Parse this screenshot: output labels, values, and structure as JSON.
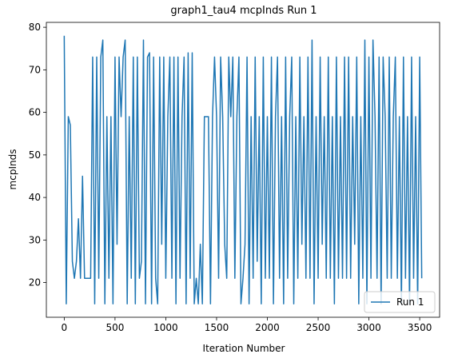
{
  "chart_data": {
    "type": "line",
    "title": "graph1_tau4 mcpInds Run 1",
    "xlabel": "Iteration Number",
    "ylabel": "mcpInds",
    "x": [
      0,
      20,
      40,
      60,
      80,
      100,
      120,
      140,
      160,
      180,
      200,
      220,
      240,
      260,
      280,
      300,
      320,
      340,
      360,
      380,
      400,
      420,
      440,
      460,
      480,
      500,
      520,
      540,
      560,
      580,
      600,
      620,
      640,
      660,
      680,
      700,
      720,
      740,
      760,
      780,
      800,
      820,
      840,
      860,
      880,
      900,
      920,
      940,
      960,
      980,
      1000,
      1020,
      1040,
      1060,
      1080,
      1100,
      1120,
      1140,
      1160,
      1180,
      1200,
      1220,
      1240,
      1260,
      1280,
      1300,
      1320,
      1340,
      1360,
      1380,
      1400,
      1420,
      1440,
      1460,
      1480,
      1500,
      1520,
      1540,
      1560,
      1580,
      1600,
      1620,
      1640,
      1660,
      1680,
      1700,
      1720,
      1740,
      1760,
      1780,
      1800,
      1820,
      1840,
      1860,
      1880,
      1900,
      1920,
      1940,
      1960,
      1980,
      2000,
      2020,
      2040,
      2060,
      2080,
      2100,
      2120,
      2140,
      2160,
      2180,
      2200,
      2220,
      2240,
      2260,
      2280,
      2300,
      2320,
      2340,
      2360,
      2380,
      2400,
      2420,
      2440,
      2460,
      2480,
      2500,
      2520,
      2540,
      2560,
      2580,
      2600,
      2620,
      2640,
      2660,
      2680,
      2700,
      2720,
      2740,
      2760,
      2780,
      2800,
      2820,
      2840,
      2860,
      2880,
      2900,
      2920,
      2940,
      2960,
      2980,
      3000,
      3020,
      3040,
      3060,
      3080,
      3100,
      3120,
      3140,
      3160,
      3180,
      3200,
      3220,
      3240,
      3260,
      3280,
      3300,
      3320,
      3340,
      3360,
      3380,
      3400,
      3420,
      3440,
      3460,
      3480,
      3500,
      3520
    ],
    "series": [
      {
        "name": "Run 1",
        "color": "#1f77b4",
        "values": [
          78,
          15,
          59,
          57,
          25,
          21,
          25,
          35,
          21,
          45,
          21,
          21,
          21,
          21,
          73,
          15,
          73,
          21,
          73,
          77,
          15,
          59,
          21,
          59,
          15,
          73,
          29,
          73,
          59,
          73,
          77,
          15,
          59,
          21,
          73,
          15,
          73,
          21,
          25,
          77,
          15,
          73,
          74,
          15,
          73,
          21,
          15,
          73,
          29,
          73,
          21,
          59,
          73,
          21,
          73,
          15,
          73,
          21,
          59,
          73,
          15,
          74,
          21,
          74,
          15,
          21,
          15,
          29,
          15,
          59,
          59,
          59,
          15,
          59,
          73,
          59,
          21,
          73,
          59,
          29,
          21,
          73,
          59,
          73,
          21,
          59,
          73,
          15,
          21,
          29,
          73,
          15,
          59,
          21,
          73,
          25,
          59,
          15,
          73,
          21,
          59,
          21,
          73,
          15,
          59,
          73,
          21,
          59,
          15,
          73,
          21,
          59,
          73,
          15,
          59,
          21,
          73,
          29,
          59,
          21,
          73,
          21,
          77,
          15,
          59,
          21,
          73,
          29,
          59,
          21,
          73,
          21,
          59,
          15,
          73,
          21,
          59,
          21,
          73,
          21,
          73,
          21,
          59,
          29,
          73,
          15,
          59,
          21,
          77,
          15,
          73,
          21,
          77,
          59,
          21,
          73,
          15,
          73,
          59,
          21,
          73,
          21,
          59,
          73,
          21,
          59,
          15,
          73,
          21,
          59,
          15,
          73,
          21,
          59,
          15,
          73,
          21
        ]
      }
    ],
    "xlim": [
      -176,
      3696
    ],
    "ylim": [
      11.85,
      81.15
    ],
    "xticks": [
      0,
      500,
      1000,
      1500,
      2000,
      2500,
      3000,
      3500
    ],
    "yticks": [
      20,
      30,
      40,
      50,
      60,
      70,
      80
    ],
    "legend": "lower right"
  }
}
